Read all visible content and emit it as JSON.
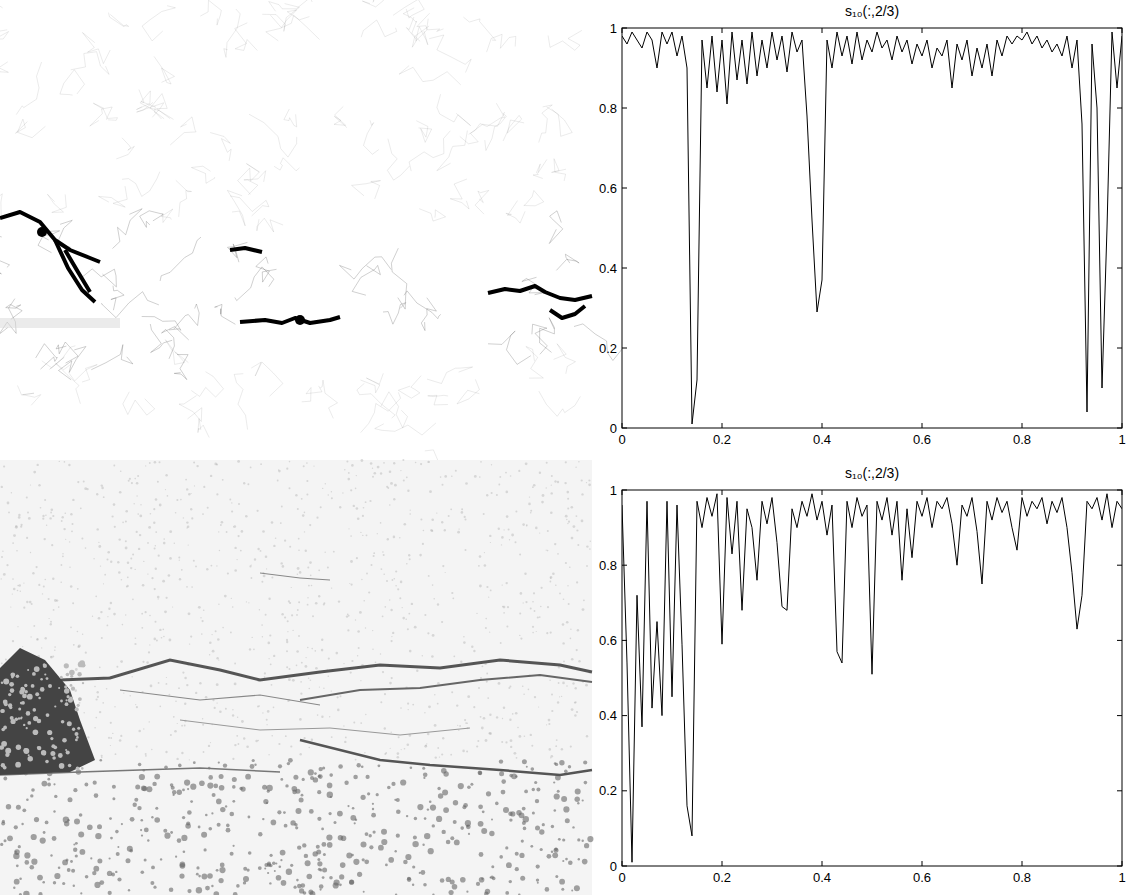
{
  "chart_data": [
    {
      "type": "line",
      "title": "s₁₀(:,2/3)",
      "color": "#000000",
      "x": [
        0,
        0.01,
        0.02,
        0.03,
        0.04,
        0.05,
        0.06,
        0.07,
        0.08,
        0.09,
        0.1,
        0.11,
        0.12,
        0.13,
        0.14,
        0.15,
        0.16,
        0.17,
        0.18,
        0.19,
        0.2,
        0.21,
        0.22,
        0.23,
        0.24,
        0.25,
        0.26,
        0.27,
        0.28,
        0.29,
        0.3,
        0.31,
        0.32,
        0.33,
        0.34,
        0.35,
        0.36,
        0.37,
        0.38,
        0.39,
        0.4,
        0.41,
        0.42,
        0.43,
        0.44,
        0.45,
        0.46,
        0.47,
        0.48,
        0.49,
        0.5,
        0.51,
        0.52,
        0.53,
        0.54,
        0.55,
        0.56,
        0.57,
        0.58,
        0.59,
        0.6,
        0.61,
        0.62,
        0.63,
        0.64,
        0.65,
        0.66,
        0.67,
        0.68,
        0.69,
        0.7,
        0.71,
        0.72,
        0.73,
        0.74,
        0.75,
        0.76,
        0.77,
        0.78,
        0.79,
        0.8,
        0.81,
        0.82,
        0.83,
        0.84,
        0.85,
        0.86,
        0.87,
        0.88,
        0.89,
        0.9,
        0.91,
        0.92,
        0.93,
        0.94,
        0.95,
        0.96,
        0.97,
        0.98,
        0.99,
        1
      ],
      "values": [
        0.98,
        0.96,
        0.99,
        0.97,
        0.95,
        0.99,
        0.97,
        0.9,
        0.99,
        0.96,
        0.99,
        0.93,
        0.98,
        0.9,
        0.01,
        0.12,
        0.97,
        0.85,
        0.98,
        0.84,
        0.97,
        0.81,
        0.99,
        0.87,
        0.97,
        0.86,
        0.99,
        0.88,
        0.97,
        0.9,
        0.99,
        0.92,
        0.98,
        0.89,
        0.99,
        0.94,
        0.97,
        0.78,
        0.52,
        0.29,
        0.37,
        0.97,
        0.9,
        0.99,
        0.93,
        0.98,
        0.91,
        0.99,
        0.92,
        0.97,
        0.94,
        0.99,
        0.95,
        0.97,
        0.92,
        0.98,
        0.94,
        0.97,
        0.91,
        0.96,
        0.93,
        0.97,
        0.9,
        0.95,
        0.93,
        0.97,
        0.85,
        0.96,
        0.92,
        0.97,
        0.88,
        0.95,
        0.9,
        0.96,
        0.88,
        0.97,
        0.93,
        0.98,
        0.96,
        0.98,
        0.97,
        0.99,
        0.96,
        0.98,
        0.95,
        0.97,
        0.94,
        0.96,
        0.93,
        0.98,
        0.9,
        0.97,
        0.76,
        0.04,
        0.96,
        0.8,
        0.1,
        0.5,
        0.99,
        0.85,
        0.98
      ],
      "xlim": [
        0,
        1
      ],
      "ylim": [
        0,
        1
      ],
      "xticks": [
        0,
        0.2,
        0.4,
        0.6,
        0.8,
        1
      ],
      "yticks": [
        0,
        0.2,
        0.4,
        0.6,
        0.8,
        1
      ]
    },
    {
      "type": "line",
      "title": "s₁₀(:,2/3)",
      "color": "#000000",
      "x": [
        0,
        0.01,
        0.02,
        0.03,
        0.04,
        0.05,
        0.06,
        0.07,
        0.08,
        0.09,
        0.1,
        0.11,
        0.12,
        0.13,
        0.14,
        0.15,
        0.16,
        0.17,
        0.18,
        0.19,
        0.2,
        0.21,
        0.22,
        0.23,
        0.24,
        0.25,
        0.26,
        0.27,
        0.28,
        0.29,
        0.3,
        0.31,
        0.32,
        0.33,
        0.34,
        0.35,
        0.36,
        0.37,
        0.38,
        0.39,
        0.4,
        0.41,
        0.42,
        0.43,
        0.44,
        0.45,
        0.46,
        0.47,
        0.48,
        0.49,
        0.5,
        0.51,
        0.52,
        0.53,
        0.54,
        0.55,
        0.56,
        0.57,
        0.58,
        0.59,
        0.6,
        0.61,
        0.62,
        0.63,
        0.64,
        0.65,
        0.66,
        0.67,
        0.68,
        0.69,
        0.7,
        0.71,
        0.72,
        0.73,
        0.74,
        0.75,
        0.76,
        0.77,
        0.78,
        0.79,
        0.8,
        0.81,
        0.82,
        0.83,
        0.84,
        0.85,
        0.86,
        0.87,
        0.88,
        0.89,
        0.9,
        0.91,
        0.92,
        0.93,
        0.94,
        0.95,
        0.96,
        0.97,
        0.98,
        0.99,
        1
      ],
      "values": [
        0.96,
        0.54,
        0.01,
        0.72,
        0.37,
        0.97,
        0.42,
        0.65,
        0.4,
        0.97,
        0.45,
        0.96,
        0.59,
        0.16,
        0.08,
        0.97,
        0.9,
        0.98,
        0.93,
        0.99,
        0.59,
        0.98,
        0.83,
        0.97,
        0.68,
        0.95,
        0.9,
        0.76,
        0.97,
        0.91,
        0.98,
        0.86,
        0.69,
        0.68,
        0.95,
        0.9,
        0.97,
        0.93,
        0.99,
        0.92,
        0.97,
        0.88,
        0.96,
        0.57,
        0.54,
        0.97,
        0.9,
        0.98,
        0.93,
        0.96,
        0.51,
        0.97,
        0.92,
        0.98,
        0.88,
        0.97,
        0.76,
        0.95,
        0.82,
        0.97,
        0.93,
        0.98,
        0.9,
        0.97,
        0.95,
        0.98,
        0.91,
        0.8,
        0.96,
        0.93,
        0.98,
        0.89,
        0.75,
        0.97,
        0.92,
        0.98,
        0.94,
        0.97,
        0.9,
        0.84,
        0.98,
        0.93,
        0.97,
        0.95,
        0.98,
        0.91,
        0.97,
        0.94,
        0.98,
        0.9,
        0.78,
        0.63,
        0.72,
        0.97,
        0.95,
        0.98,
        0.92,
        0.99,
        0.9,
        0.97,
        0.95
      ],
      "xlim": [
        0,
        1
      ],
      "ylim": [
        0,
        1
      ],
      "xticks": [
        0,
        0.2,
        0.4,
        0.6,
        0.8,
        1
      ],
      "yticks": [
        0,
        0.2,
        0.4,
        0.6,
        0.8,
        1
      ]
    }
  ]
}
